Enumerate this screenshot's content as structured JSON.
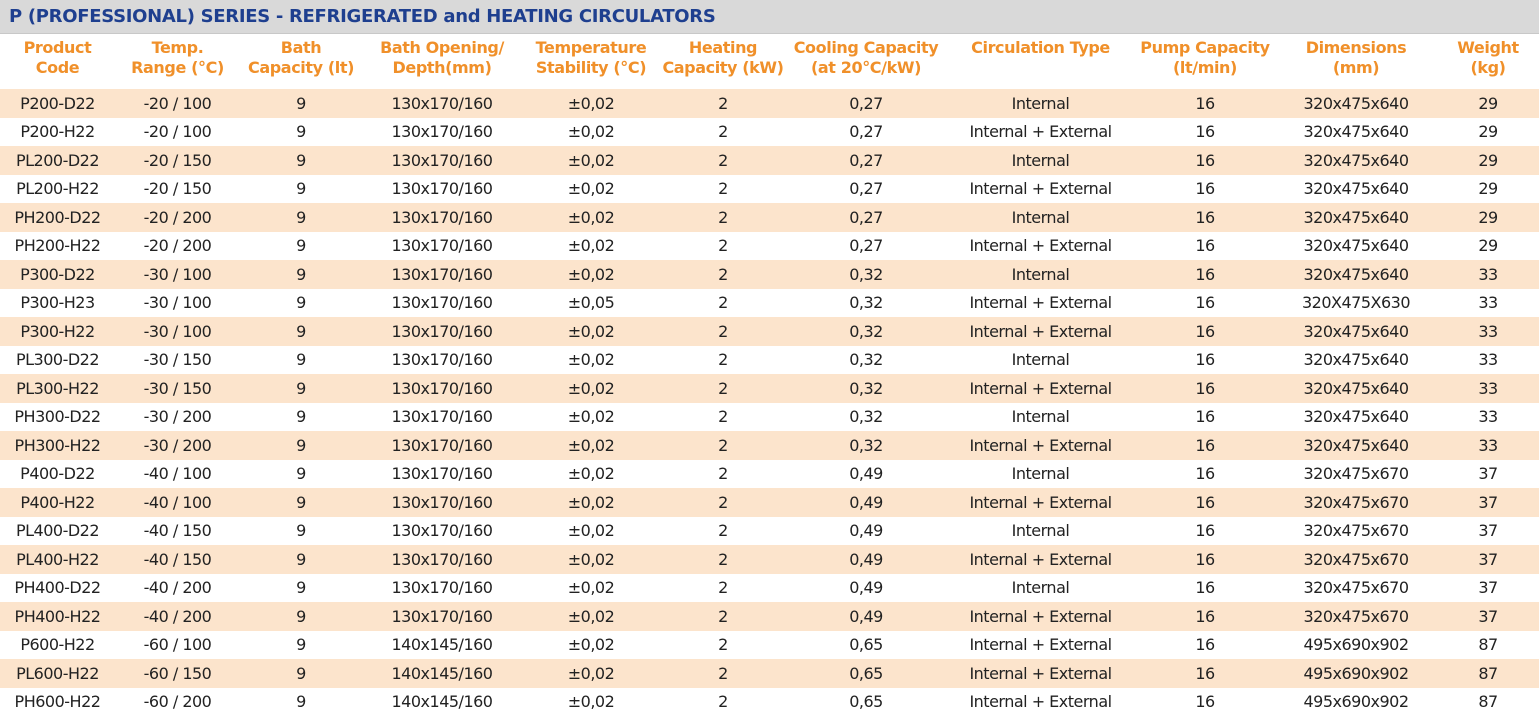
{
  "title": "P (PROFESSIONAL) SERIES - REFRIGERATED and HEATING CIRCULATORS",
  "columns": [
    {
      "line1": "Product",
      "line2": "Code"
    },
    {
      "line1": "Temp.",
      "line2": "Range (°C)"
    },
    {
      "line1": "Bath",
      "line2": "Capacity (lt)"
    },
    {
      "line1": "Bath Opening/",
      "line2": "Depth(mm)"
    },
    {
      "line1": "Temperature",
      "line2": "Stability (°C)"
    },
    {
      "line1": "Heating",
      "line2": "Capacity (kW)"
    },
    {
      "line1": "Cooling Capacity",
      "line2": "(at 20°C/kW)"
    },
    {
      "line1": "Circulation Type",
      "line2": ""
    },
    {
      "line1": "Pump Capacity",
      "line2": "(lt/min)"
    },
    {
      "line1": "Dimensions",
      "line2": "(mm)"
    },
    {
      "line1": "Weight",
      "line2": "(kg)"
    }
  ],
  "rows": [
    [
      "P200-D22",
      "-20 / 100",
      "9",
      "130x170/160",
      "±0,02",
      "2",
      "0,27",
      "Internal",
      "16",
      "320x475x640",
      "29"
    ],
    [
      "P200-H22",
      "-20 / 100",
      "9",
      "130x170/160",
      "±0,02",
      "2",
      "0,27",
      "Internal + External",
      "16",
      "320x475x640",
      "29"
    ],
    [
      "PL200-D22",
      "-20 / 150",
      "9",
      "130x170/160",
      "±0,02",
      "2",
      "0,27",
      "Internal",
      "16",
      "320x475x640",
      "29"
    ],
    [
      "PL200-H22",
      "-20 / 150",
      "9",
      "130x170/160",
      "±0,02",
      "2",
      "0,27",
      "Internal + External",
      "16",
      "320x475x640",
      "29"
    ],
    [
      "PH200-D22",
      "-20 / 200",
      "9",
      "130x170/160",
      "±0,02",
      "2",
      "0,27",
      "Internal",
      "16",
      "320x475x640",
      "29"
    ],
    [
      "PH200-H22",
      "-20 / 200",
      "9",
      "130x170/160",
      "±0,02",
      "2",
      "0,27",
      "Internal + External",
      "16",
      "320x475x640",
      "29"
    ],
    [
      "P300-D22",
      "-30 / 100",
      "9",
      "130x170/160",
      "±0,02",
      "2",
      "0,32",
      "Internal",
      "16",
      "320x475x640",
      "33"
    ],
    [
      "P300-H23",
      "-30 / 100",
      "9",
      "130x170/160",
      "±0,05",
      "2",
      "0,32",
      "Internal + External",
      "16",
      "320X475X630",
      "33"
    ],
    [
      "P300-H22",
      "-30 / 100",
      "9",
      "130x170/160",
      "±0,02",
      "2",
      "0,32",
      "Internal + External",
      "16",
      "320x475x640",
      "33"
    ],
    [
      "PL300-D22",
      "-30 / 150",
      "9",
      "130x170/160",
      "±0,02",
      "2",
      "0,32",
      "Internal",
      "16",
      "320x475x640",
      "33"
    ],
    [
      "PL300-H22",
      "-30 / 150",
      "9",
      "130x170/160",
      "±0,02",
      "2",
      "0,32",
      "Internal + External",
      "16",
      "320x475x640",
      "33"
    ],
    [
      "PH300-D22",
      "-30 / 200",
      "9",
      "130x170/160",
      "±0,02",
      "2",
      "0,32",
      "Internal",
      "16",
      "320x475x640",
      "33"
    ],
    [
      "PH300-H22",
      "-30 / 200",
      "9",
      "130x170/160",
      "±0,02",
      "2",
      "0,32",
      "Internal + External",
      "16",
      "320x475x640",
      "33"
    ],
    [
      "P400-D22",
      "-40 / 100",
      "9",
      "130x170/160",
      "±0,02",
      "2",
      "0,49",
      "Internal",
      "16",
      "320x475x670",
      "37"
    ],
    [
      "P400-H22",
      "-40 / 100",
      "9",
      "130x170/160",
      "±0,02",
      "2",
      "0,49",
      "Internal + External",
      "16",
      "320x475x670",
      "37"
    ],
    [
      "PL400-D22",
      "-40 / 150",
      "9",
      "130x170/160",
      "±0,02",
      "2",
      "0,49",
      "Internal",
      "16",
      "320x475x670",
      "37"
    ],
    [
      "PL400-H22",
      "-40 / 150",
      "9",
      "130x170/160",
      "±0,02",
      "2",
      "0,49",
      "Internal + External",
      "16",
      "320x475x670",
      "37"
    ],
    [
      "PH400-D22",
      "-40 / 200",
      "9",
      "130x170/160",
      "±0,02",
      "2",
      "0,49",
      "Internal",
      "16",
      "320x475x670",
      "37"
    ],
    [
      "PH400-H22",
      "-40 / 200",
      "9",
      "130x170/160",
      "±0,02",
      "2",
      "0,49",
      "Internal + External",
      "16",
      "320x475x670",
      "37"
    ],
    [
      "P600-H22",
      "-60 / 100",
      "9",
      "140x145/160",
      "±0,02",
      "2",
      "0,65",
      "Internal + External",
      "16",
      "495x690x902",
      "87"
    ],
    [
      "PL600-H22",
      "-60 / 150",
      "9",
      "140x145/160",
      "±0,02",
      "2",
      "0,65",
      "Internal + External",
      "16",
      "495x690x902",
      "87"
    ],
    [
      "PH600-H22",
      "-60 / 200",
      "9",
      "140x145/160",
      "±0,02",
      "2",
      "0,65",
      "Internal + External",
      "16",
      "495x690x902",
      "87"
    ]
  ],
  "colors": {
    "title_text": "#1e3f8f",
    "title_bar": "#d9d9d9",
    "header_text": "#f0902a",
    "row_shade": "#fce4cc",
    "cell_text": "#222222"
  }
}
